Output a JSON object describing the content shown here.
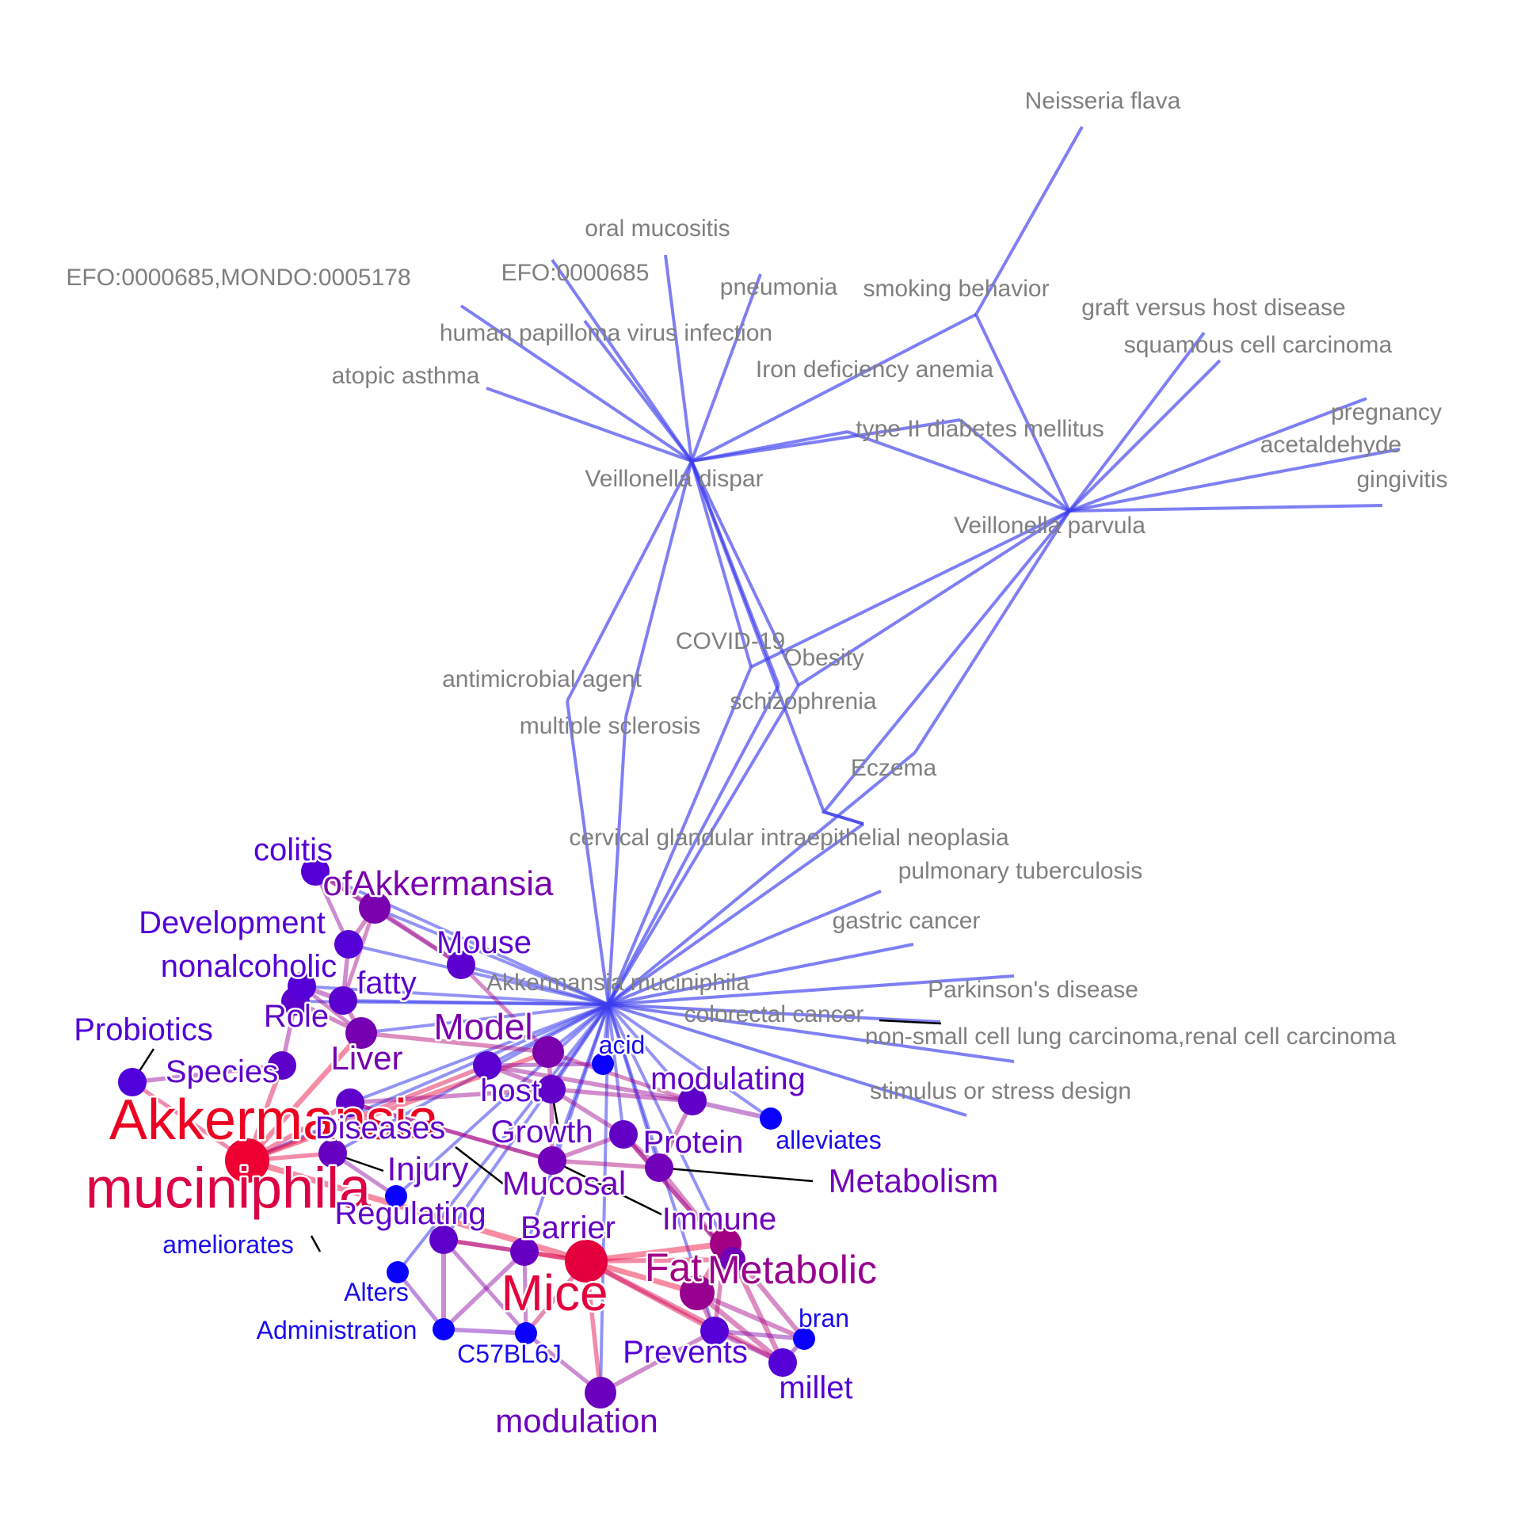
{
  "colors": {
    "background": "#ffffff",
    "bipartite_edge": "#3a3aee",
    "gray_label": "#7f7f7f",
    "keyword_low": "#2d00ff",
    "keyword_high": "#ee0033"
  },
  "hubs": [
    {
      "id": "vd",
      "label": "Veillonella dispar"
    },
    {
      "id": "vp",
      "label": "Veillonella parvula"
    },
    {
      "id": "am",
      "label": "Akkermansia muciniphila"
    }
  ],
  "diseases": [
    {
      "id": "d1",
      "label": "Neisseria flava"
    },
    {
      "id": "d2",
      "label": "oral mucositis"
    },
    {
      "id": "d3",
      "label": "EFO:0000685"
    },
    {
      "id": "d4",
      "label": "EFO:0000685,MONDO:0005178"
    },
    {
      "id": "d5",
      "label": "pneumonia"
    },
    {
      "id": "d6",
      "label": "smoking behavior"
    },
    {
      "id": "d7",
      "label": "human papilloma virus infection"
    },
    {
      "id": "d8",
      "label": "atopic asthma"
    },
    {
      "id": "d9",
      "label": "Iron deficiency anemia"
    },
    {
      "id": "d10",
      "label": "type II diabetes mellitus"
    },
    {
      "id": "d11",
      "label": "graft versus host disease"
    },
    {
      "id": "d12",
      "label": "squamous cell carcinoma"
    },
    {
      "id": "d13",
      "label": "pregnancy"
    },
    {
      "id": "d14",
      "label": "acetaldehyde"
    },
    {
      "id": "d15",
      "label": "gingivitis"
    },
    {
      "id": "d16",
      "label": "COVID-19"
    },
    {
      "id": "d17",
      "label": "Obesity"
    },
    {
      "id": "d18",
      "label": "antimicrobial agent"
    },
    {
      "id": "d19",
      "label": "schizophrenia"
    },
    {
      "id": "d20",
      "label": "multiple sclerosis"
    },
    {
      "id": "d21",
      "label": "Eczema"
    },
    {
      "id": "d22",
      "label": "cervical glandular intraepithelial neoplasia"
    },
    {
      "id": "d23",
      "label": "pulmonary tuberculosis"
    },
    {
      "id": "d24",
      "label": "gastric cancer"
    },
    {
      "id": "d25",
      "label": "Parkinson's disease"
    },
    {
      "id": "d26",
      "label": "colorectal cancer"
    },
    {
      "id": "d27",
      "label": "non-small cell lung carcinoma,renal cell carcinoma"
    },
    {
      "id": "d28",
      "label": "stimulus or stress design"
    }
  ],
  "keywords": [
    {
      "id": "k1",
      "label": "Akkermansia muciniphila",
      "weight": 1.0
    },
    {
      "id": "k2",
      "label": "Mice",
      "weight": 0.95
    },
    {
      "id": "k3",
      "label": "Fat",
      "weight": 0.6
    },
    {
      "id": "k4",
      "label": "Metabolic",
      "weight": 0.55
    },
    {
      "id": "k5",
      "label": "ofAkkermansia",
      "weight": 0.4
    },
    {
      "id": "k6",
      "label": "Model",
      "weight": 0.4
    },
    {
      "id": "k7",
      "label": "Liver",
      "weight": 0.38
    },
    {
      "id": "k8",
      "label": "Mucosal",
      "weight": 0.35
    },
    {
      "id": "k9",
      "label": "Immune",
      "weight": 0.35
    },
    {
      "id": "k10",
      "label": "Metabolism",
      "weight": 0.35
    },
    {
      "id": "k11",
      "label": "modulation",
      "weight": 0.32
    },
    {
      "id": "k12",
      "label": "Injury",
      "weight": 0.3
    },
    {
      "id": "k13",
      "label": "Barrier",
      "weight": 0.3
    },
    {
      "id": "k14",
      "label": "Protein",
      "weight": 0.28
    },
    {
      "id": "k15",
      "label": "modulating",
      "weight": 0.27
    },
    {
      "id": "k16",
      "label": "Growth",
      "weight": 0.27
    },
    {
      "id": "k17",
      "label": "Diseases",
      "weight": 0.26
    },
    {
      "id": "k18",
      "label": "Regulating",
      "weight": 0.26
    },
    {
      "id": "k19",
      "label": "Species",
      "weight": 0.25
    },
    {
      "id": "k20",
      "label": "Role",
      "weight": 0.25
    },
    {
      "id": "k21",
      "label": "fatty",
      "weight": 0.24
    },
    {
      "id": "k22",
      "label": "Mouse",
      "weight": 0.24
    },
    {
      "id": "k23",
      "label": "host",
      "weight": 0.23
    },
    {
      "id": "k24",
      "label": "colitis",
      "weight": 0.2
    },
    {
      "id": "k25",
      "label": "Development",
      "weight": 0.2
    },
    {
      "id": "k26",
      "label": "nonalcoholic",
      "weight": 0.2
    },
    {
      "id": "k27",
      "label": "Probiotics",
      "weight": 0.18
    },
    {
      "id": "k28",
      "label": "Prevents",
      "weight": 0.2
    },
    {
      "id": "k29",
      "label": "millet",
      "weight": 0.2
    },
    {
      "id": "k30",
      "label": "acid",
      "weight": 0.05
    },
    {
      "id": "k31",
      "label": "alleviates",
      "weight": 0.05
    },
    {
      "id": "k32",
      "label": "bran",
      "weight": 0.05
    },
    {
      "id": "k33",
      "label": "ameliorates",
      "weight": 0.05
    },
    {
      "id": "k34",
      "label": "Alters",
      "weight": 0.05
    },
    {
      "id": "k35",
      "label": "Administration",
      "weight": 0.05
    },
    {
      "id": "k36",
      "label": "C57BL6J",
      "weight": 0.05
    }
  ]
}
